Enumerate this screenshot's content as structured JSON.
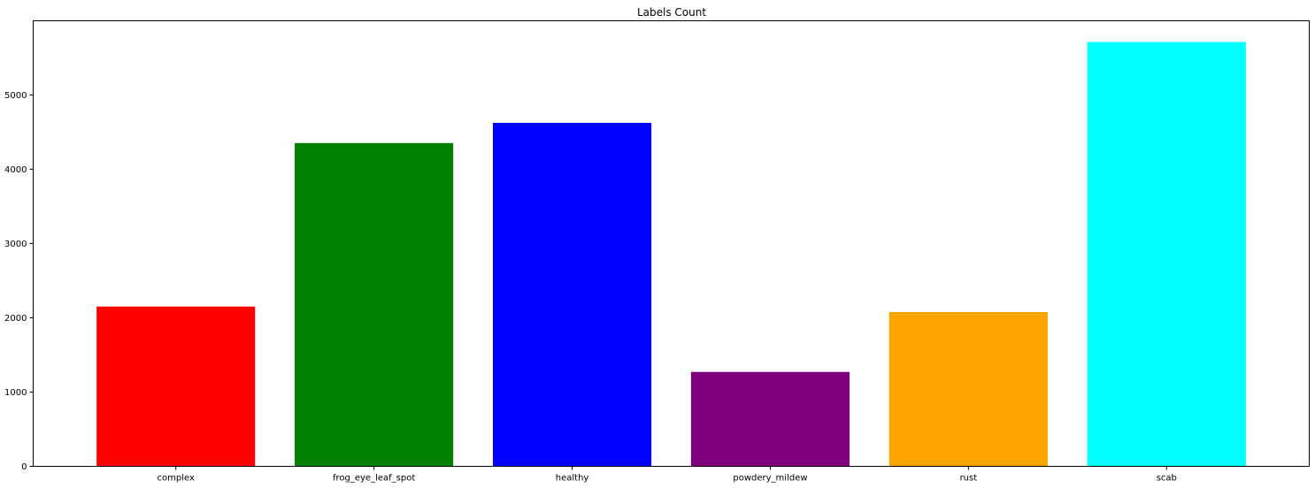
{
  "chart_data": {
    "type": "bar",
    "title": "Labels Count",
    "xlabel": "",
    "ylabel": "",
    "categories": [
      "complex",
      "frog_eye_leaf_spot",
      "healthy",
      "powdery_mildew",
      "rust",
      "scab"
    ],
    "values": [
      2151,
      4352,
      4624,
      1271,
      2077,
      5712
    ],
    "colors": [
      "#ff0000",
      "#008000",
      "#0000ff",
      "#800080",
      "#ffa500",
      "#00ffff"
    ],
    "ylim": [
      0,
      5998
    ],
    "yticks": [
      0,
      1000,
      2000,
      3000,
      4000,
      5000
    ],
    "ytick_labels": [
      "0",
      "1000",
      "2000",
      "3000",
      "4000",
      "5000"
    ],
    "grid": false,
    "legend": "none"
  }
}
